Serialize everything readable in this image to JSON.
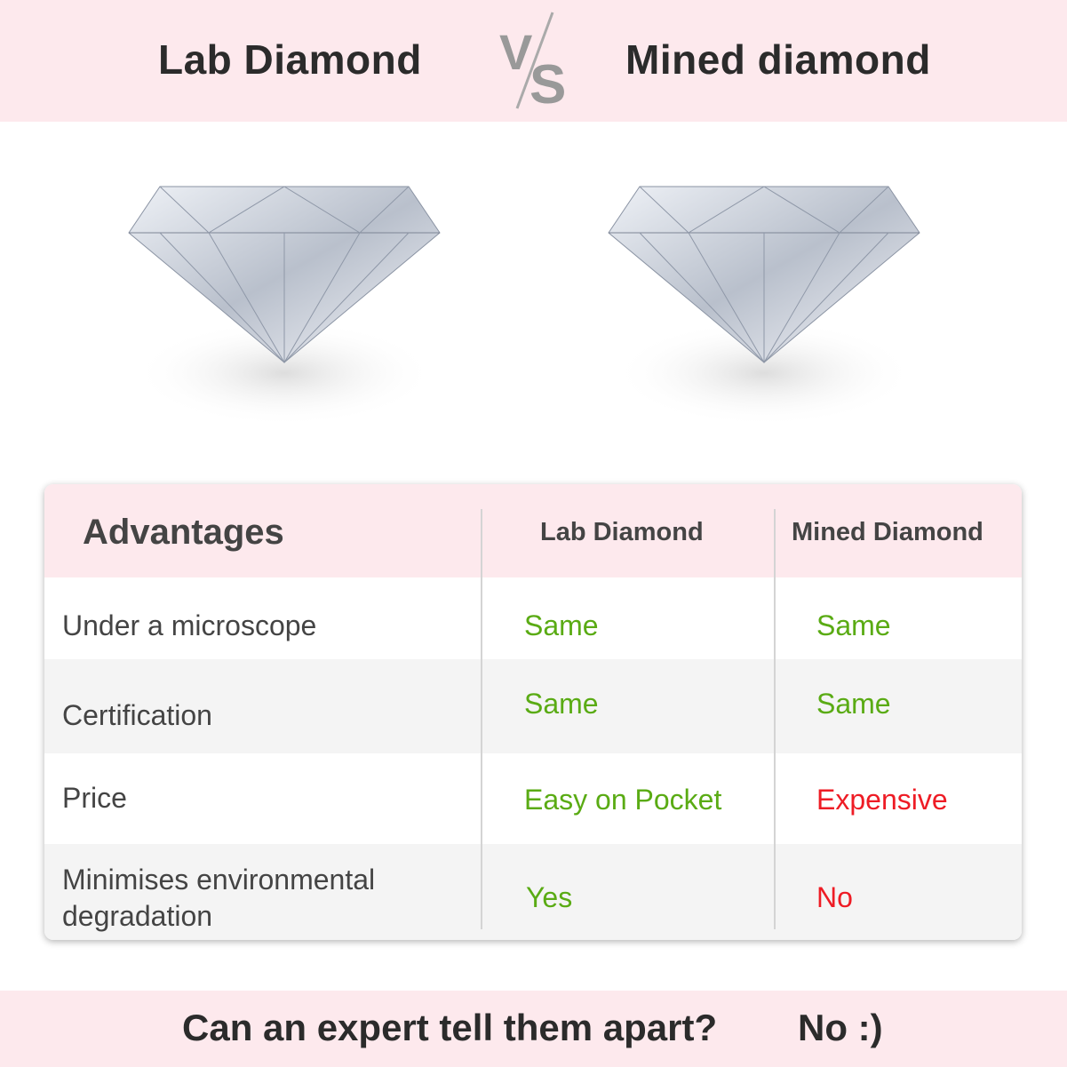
{
  "header": {
    "left_title": "Lab Diamond",
    "vs": "VS",
    "right_title": "Mined diamond"
  },
  "images": [
    {
      "name": "lab-diamond-image"
    },
    {
      "name": "mined-diamond-image"
    }
  ],
  "table": {
    "columns": [
      "Advantages",
      "Lab Diamond",
      "Mined Diamond"
    ],
    "rows": [
      {
        "label": "Under a microscope",
        "lab": "Same",
        "mined": "Same"
      },
      {
        "label": "Certification",
        "lab": "Same",
        "mined": "Same"
      },
      {
        "label": "Price",
        "lab": "Easy on Pocket",
        "mined": "Expensive"
      },
      {
        "label": "Minimises environmental degradation",
        "lab": "Yes",
        "mined": "No"
      }
    ]
  },
  "footer": {
    "question": "Can an expert tell them apart?",
    "answer": "No :)"
  },
  "colors": {
    "band": "#fde9ed",
    "positive": "#5aab14",
    "negative": "#ee1c25",
    "alt_row": "#f4f4f4"
  }
}
